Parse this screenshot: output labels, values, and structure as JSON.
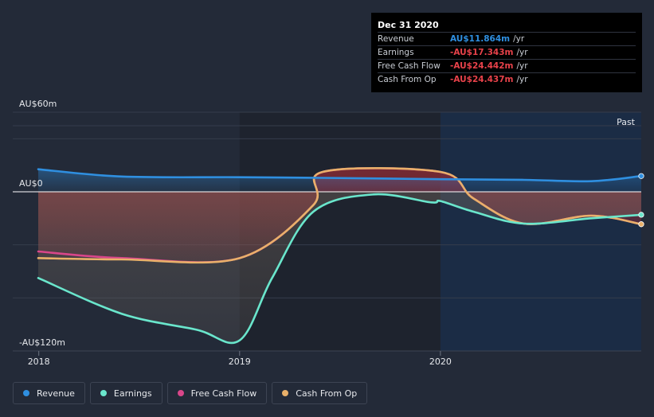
{
  "chart_data": {
    "type": "area",
    "y_tick_labels": {
      "top": "AU$60m",
      "zero": "AU$0",
      "bottom": "-AU$120m"
    },
    "ylim": [
      -120,
      60
    ],
    "x_tick_labels": [
      "2018",
      "2019",
      "2020"
    ],
    "xlim": [
      "2017-12-31",
      "2020-12-31"
    ],
    "past_label": "Past",
    "past_shaded_from": "2020-01-01",
    "series": [
      {
        "name": "Revenue",
        "color": "#2f8fe0",
        "points": [
          [
            "2017-12-31",
            17
          ],
          [
            "2018-06-01",
            11.5
          ],
          [
            "2019-01-01",
            11
          ],
          [
            "2019-06-01",
            10.5
          ],
          [
            "2020-01-01",
            9.5
          ],
          [
            "2020-06-01",
            9
          ],
          [
            "2020-10-01",
            8
          ],
          [
            "2020-12-31",
            11.864
          ]
        ]
      },
      {
        "name": "Earnings",
        "color": "#6ae6cc",
        "points": [
          [
            "2017-12-31",
            -65
          ],
          [
            "2018-06-01",
            -92
          ],
          [
            "2018-10-15",
            -104
          ],
          [
            "2019-01-01",
            -112
          ],
          [
            "2019-03-01",
            -65
          ],
          [
            "2019-05-15",
            -15
          ],
          [
            "2019-09-01",
            -2
          ],
          [
            "2019-12-15",
            -8
          ],
          [
            "2020-01-01",
            -7
          ],
          [
            "2020-03-01",
            -15
          ],
          [
            "2020-06-01",
            -24
          ],
          [
            "2020-10-01",
            -20
          ],
          [
            "2020-12-31",
            -17.343
          ]
        ]
      },
      {
        "name": "Free Cash Flow",
        "color": "#d9468a",
        "points": [
          [
            "2017-12-31",
            -45
          ],
          [
            "2018-06-01",
            -50
          ],
          [
            "2019-01-01",
            -50
          ],
          [
            "2019-05-15",
            -10
          ],
          [
            "2019-06-01",
            15
          ],
          [
            "2020-01-01",
            15
          ],
          [
            "2020-03-01",
            -5
          ],
          [
            "2020-06-01",
            -24
          ],
          [
            "2020-10-01",
            -18
          ],
          [
            "2020-12-31",
            -24.442
          ]
        ]
      },
      {
        "name": "Cash From Op",
        "color": "#e9b06a",
        "points": [
          [
            "2017-12-31",
            -50
          ],
          [
            "2018-06-01",
            -51
          ],
          [
            "2019-01-01",
            -50
          ],
          [
            "2019-05-15",
            -10
          ],
          [
            "2019-06-01",
            15
          ],
          [
            "2020-01-01",
            15
          ],
          [
            "2020-03-01",
            -5
          ],
          [
            "2020-06-01",
            -24
          ],
          [
            "2020-10-01",
            -18
          ],
          [
            "2020-12-31",
            -24.437
          ]
        ]
      }
    ]
  },
  "tooltip": {
    "date": "Dec 31 2020",
    "rows": [
      {
        "label": "Revenue",
        "value": "AU$11.864m",
        "unit": "/yr",
        "color": "#2f8fe0"
      },
      {
        "label": "Earnings",
        "value": "-AU$17.343m",
        "unit": "/yr",
        "color": "#e8424a"
      },
      {
        "label": "Free Cash Flow",
        "value": "-AU$24.442m",
        "unit": "/yr",
        "color": "#e8424a"
      },
      {
        "label": "Cash From Op",
        "value": "-AU$24.437m",
        "unit": "/yr",
        "color": "#e8424a"
      }
    ]
  },
  "legend": [
    {
      "label": "Revenue",
      "color": "#2f8fe0"
    },
    {
      "label": "Earnings",
      "color": "#6ae6cc"
    },
    {
      "label": "Free Cash Flow",
      "color": "#d9468a"
    },
    {
      "label": "Cash From Op",
      "color": "#e9b06a"
    }
  ]
}
